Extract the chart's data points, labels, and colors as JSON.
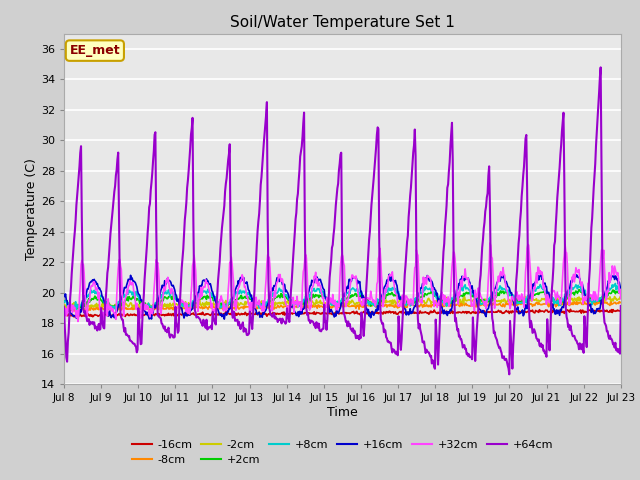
{
  "title": "Soil/Water Temperature Set 1",
  "xlabel": "Time",
  "ylabel": "Temperature (C)",
  "ylim": [
    14,
    37
  ],
  "yticks": [
    14,
    16,
    18,
    20,
    22,
    24,
    26,
    28,
    30,
    32,
    34,
    36
  ],
  "x_start_day": 8,
  "x_end_day": 23,
  "x_tick_days": [
    8,
    9,
    10,
    11,
    12,
    13,
    14,
    15,
    16,
    17,
    18,
    19,
    20,
    21,
    22,
    23
  ],
  "fig_bg": "#d0d0d0",
  "plot_bg": "#e8e8e8",
  "grid_color": "#ffffff",
  "legend_label": "EE_met",
  "legend_bg": "#ffffc0",
  "legend_border": "#c8a000",
  "series_colors": {
    "-16cm": "#cc0000",
    "-8cm": "#ff8800",
    "-2cm": "#cccc00",
    "+2cm": "#00cc00",
    "+8cm": "#00cccc",
    "+16cm": "#0000cc",
    "+32cm": "#ff44ff",
    "+64cm": "#9900cc"
  }
}
